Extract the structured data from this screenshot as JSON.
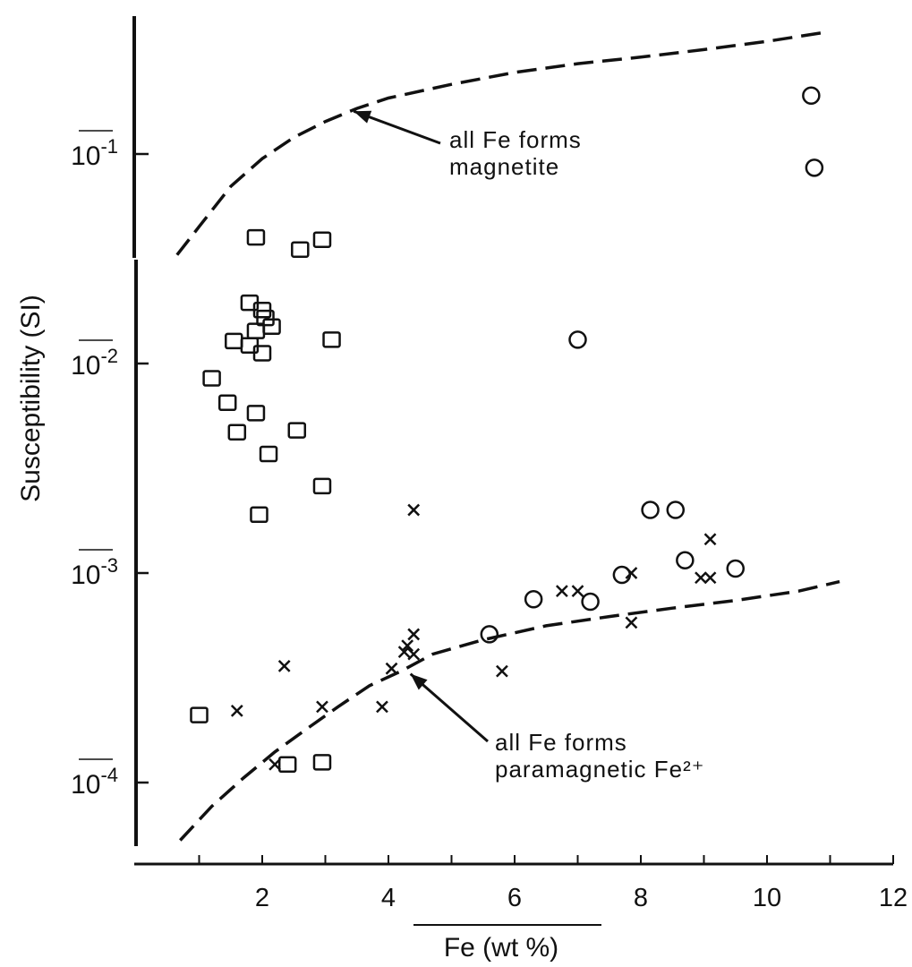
{
  "chart_data": {
    "type": "scatter",
    "title": "",
    "xlabel": "Fe (wt %)",
    "ylabel": "Susceptibility (SI)",
    "xlim": [
      0,
      12
    ],
    "ylim": [
      4e-05,
      0.5
    ],
    "yscale": "log",
    "grid": false,
    "x_ticks": [
      {
        "value": 2,
        "label": "2"
      },
      {
        "value": 4,
        "label": "4"
      },
      {
        "value": 6,
        "label": "6"
      },
      {
        "value": 8,
        "label": "8"
      },
      {
        "value": 10,
        "label": "10"
      },
      {
        "value": 12,
        "label": "12"
      }
    ],
    "y_ticks": [
      {
        "value": 0.1,
        "base": "10",
        "exp": "-1"
      },
      {
        "value": 0.01,
        "base": "10",
        "exp": "-2"
      },
      {
        "value": 0.001,
        "base": "10",
        "exp": "-3"
      },
      {
        "value": 0.0001,
        "base": "10",
        "exp": "-4"
      }
    ],
    "series": [
      {
        "marker": "square",
        "points": [
          [
            1.9,
            0.04
          ],
          [
            2.6,
            0.035
          ],
          [
            2.95,
            0.039
          ],
          [
            1.8,
            0.0195
          ],
          [
            2.0,
            0.018
          ],
          [
            2.05,
            0.0165
          ],
          [
            2.15,
            0.015
          ],
          [
            1.9,
            0.0143
          ],
          [
            1.55,
            0.0128
          ],
          [
            1.8,
            0.0122
          ],
          [
            2.0,
            0.0112
          ],
          [
            3.1,
            0.013
          ],
          [
            1.2,
            0.0085
          ],
          [
            1.45,
            0.0065
          ],
          [
            1.9,
            0.0058
          ],
          [
            1.6,
            0.0047
          ],
          [
            2.55,
            0.0048
          ],
          [
            2.1,
            0.0037
          ],
          [
            2.95,
            0.0026
          ],
          [
            1.95,
            0.0019
          ],
          [
            1.0,
            0.00021
          ],
          [
            2.4,
            0.000122
          ],
          [
            2.95,
            0.000125
          ]
        ]
      },
      {
        "marker": "circle",
        "points": [
          [
            10.7,
            0.19
          ],
          [
            10.75,
            0.086
          ],
          [
            7.0,
            0.013
          ],
          [
            8.15,
            0.002
          ],
          [
            8.55,
            0.002
          ],
          [
            8.7,
            0.00115
          ],
          [
            9.5,
            0.00105
          ],
          [
            7.7,
            0.00098
          ],
          [
            6.3,
            0.00075
          ],
          [
            7.2,
            0.00073
          ],
          [
            5.6,
            0.00051
          ]
        ]
      },
      {
        "marker": "x",
        "points": [
          [
            4.4,
            0.002
          ],
          [
            9.1,
            0.00145
          ],
          [
            7.85,
            0.001
          ],
          [
            8.95,
            0.00095
          ],
          [
            9.1,
            0.00095
          ],
          [
            6.75,
            0.00082
          ],
          [
            7.0,
            0.00082
          ],
          [
            7.85,
            0.00058
          ],
          [
            4.4,
            0.00051
          ],
          [
            4.3,
            0.00045
          ],
          [
            4.25,
            0.00042
          ],
          [
            4.4,
            0.00041
          ],
          [
            4.05,
            0.00035
          ],
          [
            2.35,
            0.00036
          ],
          [
            5.8,
            0.00034
          ],
          [
            3.9,
            0.00023
          ],
          [
            2.95,
            0.00023
          ],
          [
            1.6,
            0.00022
          ],
          [
            2.2,
            0.000122
          ]
        ]
      }
    ],
    "curves": [
      {
        "name": "magnetite",
        "points": [
          [
            0.65,
            0.033
          ],
          [
            1.0,
            0.045
          ],
          [
            1.5,
            0.07
          ],
          [
            2.0,
            0.095
          ],
          [
            2.5,
            0.12
          ],
          [
            3.0,
            0.143
          ],
          [
            3.5,
            0.165
          ],
          [
            4.0,
            0.185
          ],
          [
            5.0,
            0.215
          ],
          [
            6.0,
            0.245
          ],
          [
            7.0,
            0.27
          ],
          [
            8.0,
            0.29
          ],
          [
            9.0,
            0.315
          ],
          [
            10.0,
            0.345
          ],
          [
            10.9,
            0.38
          ]
        ]
      },
      {
        "name": "paramagnetic",
        "points": [
          [
            0.7,
            5.3e-05
          ],
          [
            1.2,
            7.7e-05
          ],
          [
            1.7,
            0.000105
          ],
          [
            2.2,
            0.00014
          ],
          [
            2.7,
            0.00018
          ],
          [
            3.2,
            0.00023
          ],
          [
            3.7,
            0.00029
          ],
          [
            4.2,
            0.00034
          ],
          [
            4.7,
            0.00041
          ],
          [
            5.5,
            0.00048
          ],
          [
            6.5,
            0.00056
          ],
          [
            7.5,
            0.00062
          ],
          [
            8.5,
            0.00068
          ],
          [
            9.5,
            0.00074
          ],
          [
            10.5,
            0.00082
          ],
          [
            11.15,
            0.00091
          ]
        ]
      }
    ],
    "annotations": [
      {
        "lines": [
          "all Fe forms",
          "magnetite"
        ],
        "arrow_to": [
          3.45,
          0.16
        ]
      },
      {
        "lines": [
          "all Fe forms",
          "paramagnetic Fe²⁺"
        ],
        "arrow_to": [
          4.35,
          0.00033
        ]
      }
    ]
  }
}
